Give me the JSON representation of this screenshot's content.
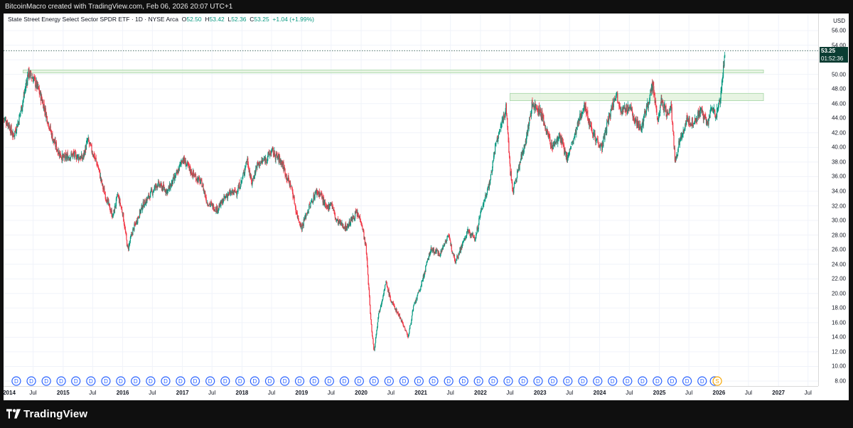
{
  "topbar": {
    "text": "BitcoinMacro created with TradingView.com, Feb 06, 2026 20:07 UTC+1"
  },
  "header": {
    "symbol": "State Street Energy Select Sector SPDR ETF · 1D · NYSE Arca",
    "o_label": "O",
    "o_value": "52.50",
    "h_label": "H",
    "h_value": "53.42",
    "l_label": "L",
    "l_value": "52.36",
    "c_label": "C",
    "c_value": "53.25",
    "change": "+1.04 (+1.99%)"
  },
  "price_axis": {
    "currency": "USD",
    "last_price": "53.25",
    "countdown": "01:52:36"
  },
  "footer": {
    "brand": "TradingView"
  },
  "colors": {
    "up": "#089981",
    "down": "#f23645",
    "zone_fill": "#dff0d8",
    "zone_border": "#a5d6a7",
    "dividend": "#2962ff",
    "split": "#f7a600"
  },
  "chart_data": {
    "type": "candlestick",
    "ylim": [
      8,
      58
    ],
    "y_ticks": [
      "8.00",
      "10.00",
      "12.00",
      "14.00",
      "16.00",
      "18.00",
      "20.00",
      "22.00",
      "24.00",
      "26.00",
      "28.00",
      "30.00",
      "32.00",
      "34.00",
      "36.00",
      "38.00",
      "40.00",
      "42.00",
      "44.00",
      "46.00",
      "48.00",
      "50.00",
      "52.00",
      "54.00",
      "56.00"
    ],
    "x_range": [
      "2014-01-01",
      "2027-09-01"
    ],
    "x_ticks": [
      {
        "label": "2014",
        "date": "2014-01-01",
        "year": true
      },
      {
        "label": "Jul",
        "date": "2014-07-01"
      },
      {
        "label": "2015",
        "date": "2015-01-01",
        "year": true
      },
      {
        "label": "Jul",
        "date": "2015-07-01"
      },
      {
        "label": "2016",
        "date": "2016-01-01",
        "year": true
      },
      {
        "label": "Jul",
        "date": "2016-07-01"
      },
      {
        "label": "2017",
        "date": "2017-01-01",
        "year": true
      },
      {
        "label": "Jul",
        "date": "2017-07-01"
      },
      {
        "label": "2018",
        "date": "2018-01-01",
        "year": true
      },
      {
        "label": "Jul",
        "date": "2018-07-01"
      },
      {
        "label": "2019",
        "date": "2019-01-01",
        "year": true
      },
      {
        "label": "Jul",
        "date": "2019-07-01"
      },
      {
        "label": "2020",
        "date": "2020-01-01",
        "year": true
      },
      {
        "label": "Jul",
        "date": "2020-07-01"
      },
      {
        "label": "2021",
        "date": "2021-01-01",
        "year": true
      },
      {
        "label": "Jul",
        "date": "2021-07-01"
      },
      {
        "label": "2022",
        "date": "2022-01-01",
        "year": true
      },
      {
        "label": "Jul",
        "date": "2022-07-01"
      },
      {
        "label": "2023",
        "date": "2023-01-01",
        "year": true
      },
      {
        "label": "Jul",
        "date": "2023-07-01"
      },
      {
        "label": "2024",
        "date": "2024-01-01",
        "year": true
      },
      {
        "label": "Jul",
        "date": "2024-07-01"
      },
      {
        "label": "2025",
        "date": "2025-01-01",
        "year": true
      },
      {
        "label": "Jul",
        "date": "2025-07-01"
      },
      {
        "label": "2026",
        "date": "2026-01-01",
        "year": true
      },
      {
        "label": "Jul",
        "date": "2026-07-01"
      },
      {
        "label": "2027",
        "date": "2027-01-01",
        "year": true
      },
      {
        "label": "Jul",
        "date": "2027-07-01"
      }
    ],
    "price_path": [
      [
        "2014-01-01",
        44.0
      ],
      [
        "2014-02-01",
        43.2
      ],
      [
        "2014-03-01",
        41.5
      ],
      [
        "2014-04-01",
        43.5
      ],
      [
        "2014-05-01",
        46.5
      ],
      [
        "2014-06-01",
        50.2
      ],
      [
        "2014-07-01",
        49.5
      ],
      [
        "2014-08-01",
        48.0
      ],
      [
        "2014-09-01",
        46.0
      ],
      [
        "2014-10-01",
        43.5
      ],
      [
        "2014-11-01",
        41.0
      ],
      [
        "2014-12-01",
        39.5
      ],
      [
        "2015-01-01",
        38.5
      ],
      [
        "2015-03-01",
        39.0
      ],
      [
        "2015-05-01",
        38.5
      ],
      [
        "2015-06-01",
        41.0
      ],
      [
        "2015-08-01",
        37.5
      ],
      [
        "2015-09-01",
        34.5
      ],
      [
        "2015-10-01",
        32.5
      ],
      [
        "2015-11-01",
        30.5
      ],
      [
        "2015-12-01",
        33.5
      ],
      [
        "2016-01-01",
        31.0
      ],
      [
        "2016-02-01",
        26.0
      ],
      [
        "2016-03-01",
        28.5
      ],
      [
        "2016-05-01",
        32.0
      ],
      [
        "2016-06-01",
        33.0
      ],
      [
        "2016-08-01",
        35.0
      ],
      [
        "2016-10-01",
        34.0
      ],
      [
        "2016-12-01",
        36.5
      ],
      [
        "2017-01-01",
        38.5
      ],
      [
        "2017-03-01",
        36.5
      ],
      [
        "2017-05-01",
        35.0
      ],
      [
        "2017-06-01",
        32.5
      ],
      [
        "2017-08-01",
        31.5
      ],
      [
        "2017-10-01",
        33.5
      ],
      [
        "2017-12-01",
        34.0
      ],
      [
        "2018-01-01",
        35.5
      ],
      [
        "2018-02-01",
        38.5
      ],
      [
        "2018-03-01",
        35.0
      ],
      [
        "2018-04-01",
        37.5
      ],
      [
        "2018-06-01",
        38.5
      ],
      [
        "2018-07-01",
        39.5
      ],
      [
        "2018-09-01",
        38.0
      ],
      [
        "2018-10-01",
        36.0
      ],
      [
        "2018-11-01",
        34.5
      ],
      [
        "2018-12-01",
        31.0
      ],
      [
        "2019-01-01",
        29.0
      ],
      [
        "2019-02-01",
        31.0
      ],
      [
        "2019-04-01",
        34.0
      ],
      [
        "2019-05-01",
        33.5
      ],
      [
        "2019-06-01",
        31.5
      ],
      [
        "2019-07-01",
        32.5
      ],
      [
        "2019-08-01",
        30.0
      ],
      [
        "2019-10-01",
        29.0
      ],
      [
        "2019-11-01",
        30.0
      ],
      [
        "2019-12-01",
        31.0
      ],
      [
        "2020-01-01",
        30.0
      ],
      [
        "2020-02-01",
        26.0
      ],
      [
        "2020-03-01",
        16.0
      ],
      [
        "2020-03-20",
        12.0
      ],
      [
        "2020-04-15",
        17.0
      ],
      [
        "2020-06-01",
        21.5
      ],
      [
        "2020-07-01",
        19.0
      ],
      [
        "2020-09-01",
        16.5
      ],
      [
        "2020-10-15",
        14.0
      ],
      [
        "2020-11-15",
        18.0
      ],
      [
        "2021-01-01",
        21.0
      ],
      [
        "2021-03-01",
        26.0
      ],
      [
        "2021-05-01",
        25.5
      ],
      [
        "2021-06-15",
        28.0
      ],
      [
        "2021-08-01",
        24.5
      ],
      [
        "2021-10-15",
        28.5
      ],
      [
        "2021-12-01",
        27.5
      ],
      [
        "2022-01-01",
        31.0
      ],
      [
        "2022-03-01",
        35.5
      ],
      [
        "2022-04-01",
        40.0
      ],
      [
        "2022-06-08",
        45.5
      ],
      [
        "2022-07-01",
        37.0
      ],
      [
        "2022-07-20",
        34.0
      ],
      [
        "2022-09-01",
        38.0
      ],
      [
        "2022-10-15",
        42.0
      ],
      [
        "2022-11-15",
        46.0
      ],
      [
        "2023-01-01",
        45.0
      ],
      [
        "2023-03-15",
        40.0
      ],
      [
        "2023-05-01",
        41.5
      ],
      [
        "2023-06-15",
        38.5
      ],
      [
        "2023-08-01",
        41.5
      ],
      [
        "2023-09-28",
        46.0
      ],
      [
        "2023-10-15",
        44.5
      ],
      [
        "2023-12-01",
        41.5
      ],
      [
        "2024-01-15",
        40.0
      ],
      [
        "2024-02-15",
        43.0
      ],
      [
        "2024-04-10",
        47.5
      ],
      [
        "2024-05-15",
        45.0
      ],
      [
        "2024-07-01",
        45.5
      ],
      [
        "2024-08-01",
        44.0
      ],
      [
        "2024-09-10",
        42.5
      ],
      [
        "2024-10-15",
        45.5
      ],
      [
        "2024-11-22",
        48.5
      ],
      [
        "2024-12-20",
        43.5
      ],
      [
        "2025-01-15",
        46.5
      ],
      [
        "2025-02-15",
        44.5
      ],
      [
        "2025-03-15",
        45.5
      ],
      [
        "2025-04-08",
        38.0
      ],
      [
        "2025-05-01",
        40.5
      ],
      [
        "2025-06-15",
        43.5
      ],
      [
        "2025-08-01",
        43.5
      ],
      [
        "2025-09-15",
        45.0
      ],
      [
        "2025-10-20",
        43.0
      ],
      [
        "2025-11-20",
        45.5
      ],
      [
        "2025-12-15",
        44.5
      ],
      [
        "2026-01-05",
        46.0
      ],
      [
        "2026-01-25",
        50.0
      ],
      [
        "2026-02-06",
        53.25
      ]
    ],
    "zones": [
      {
        "x0": "2014-05-01",
        "x1": "2026-10-01",
        "y0": 50.2,
        "y1": 50.6
      },
      {
        "x0": "2022-07-01",
        "x1": "2026-10-01",
        "y0": 46.4,
        "y1": 47.4
      }
    ],
    "last_price": 53.25,
    "events": [
      {
        "label": "D",
        "date": "2014-03-20"
      },
      {
        "label": "D",
        "date": "2014-06-20"
      },
      {
        "label": "D",
        "date": "2014-09-20"
      },
      {
        "label": "D",
        "date": "2014-12-20"
      },
      {
        "label": "D",
        "date": "2015-03-20"
      },
      {
        "label": "D",
        "date": "2015-06-20"
      },
      {
        "label": "D",
        "date": "2015-09-20"
      },
      {
        "label": "D",
        "date": "2015-12-20"
      },
      {
        "label": "D",
        "date": "2016-03-20"
      },
      {
        "label": "D",
        "date": "2016-06-20"
      },
      {
        "label": "D",
        "date": "2016-09-20"
      },
      {
        "label": "D",
        "date": "2016-12-20"
      },
      {
        "label": "D",
        "date": "2017-03-20"
      },
      {
        "label": "D",
        "date": "2017-06-20"
      },
      {
        "label": "D",
        "date": "2017-09-20"
      },
      {
        "label": "D",
        "date": "2017-12-20"
      },
      {
        "label": "D",
        "date": "2018-03-20"
      },
      {
        "label": "D",
        "date": "2018-06-20"
      },
      {
        "label": "D",
        "date": "2018-09-20"
      },
      {
        "label": "D",
        "date": "2018-12-20"
      },
      {
        "label": "D",
        "date": "2019-03-20"
      },
      {
        "label": "D",
        "date": "2019-06-20"
      },
      {
        "label": "D",
        "date": "2019-09-20"
      },
      {
        "label": "D",
        "date": "2019-12-20"
      },
      {
        "label": "D",
        "date": "2020-03-20"
      },
      {
        "label": "D",
        "date": "2020-06-20"
      },
      {
        "label": "D",
        "date": "2020-09-20"
      },
      {
        "label": "D",
        "date": "2020-12-20"
      },
      {
        "label": "D",
        "date": "2021-03-20"
      },
      {
        "label": "D",
        "date": "2021-06-20"
      },
      {
        "label": "D",
        "date": "2021-09-20"
      },
      {
        "label": "D",
        "date": "2021-12-20"
      },
      {
        "label": "D",
        "date": "2022-03-20"
      },
      {
        "label": "D",
        "date": "2022-06-20"
      },
      {
        "label": "D",
        "date": "2022-09-20"
      },
      {
        "label": "D",
        "date": "2022-12-20"
      },
      {
        "label": "D",
        "date": "2023-03-20"
      },
      {
        "label": "D",
        "date": "2023-06-20"
      },
      {
        "label": "D",
        "date": "2023-09-20"
      },
      {
        "label": "D",
        "date": "2023-12-20"
      },
      {
        "label": "D",
        "date": "2024-03-20"
      },
      {
        "label": "D",
        "date": "2024-06-20"
      },
      {
        "label": "D",
        "date": "2024-09-20"
      },
      {
        "label": "D",
        "date": "2024-12-20"
      },
      {
        "label": "D",
        "date": "2025-03-20"
      },
      {
        "label": "D",
        "date": "2025-06-20"
      },
      {
        "label": "D",
        "date": "2025-09-20"
      },
      {
        "label": "D",
        "date": "2025-12-05"
      },
      {
        "label": "S",
        "date": "2025-12-22"
      }
    ]
  }
}
